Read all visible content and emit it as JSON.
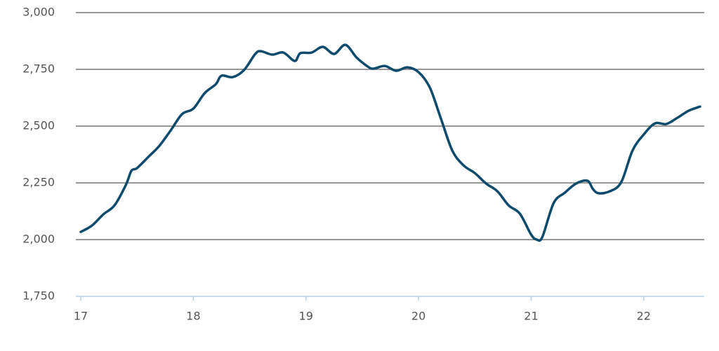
{
  "chart_data": {
    "type": "line",
    "x": [
      17.0,
      17.1,
      17.2,
      17.3,
      17.4,
      17.45,
      17.5,
      17.6,
      17.7,
      17.8,
      17.9,
      18.0,
      18.1,
      18.2,
      18.25,
      18.35,
      18.45,
      18.55,
      18.6,
      18.7,
      18.8,
      18.9,
      18.95,
      19.05,
      19.15,
      19.25,
      19.35,
      19.45,
      19.55,
      19.6,
      19.7,
      19.8,
      19.9,
      20.0,
      20.1,
      20.2,
      20.3,
      20.4,
      20.5,
      20.6,
      20.7,
      20.8,
      20.9,
      21.0,
      21.05,
      21.1,
      21.2,
      21.3,
      21.4,
      21.5,
      21.55,
      21.6,
      21.7,
      21.8,
      21.9,
      22.0,
      22.1,
      22.2,
      22.3,
      22.4,
      22.5
    ],
    "series": [
      {
        "color": "#0d4a6b",
        "values": [
          2034,
          2062,
          2111,
          2151,
          2240,
          2303,
          2315,
          2364,
          2414,
          2482,
          2553,
          2577,
          2645,
          2685,
          2722,
          2716,
          2747,
          2818,
          2830,
          2815,
          2824,
          2787,
          2821,
          2824,
          2849,
          2818,
          2858,
          2802,
          2762,
          2753,
          2765,
          2744,
          2759,
          2738,
          2670,
          2531,
          2392,
          2327,
          2293,
          2247,
          2213,
          2151,
          2114,
          2022,
          2000,
          2012,
          2161,
          2207,
          2247,
          2259,
          2222,
          2204,
          2213,
          2253,
          2392,
          2463,
          2512,
          2509,
          2537,
          2568,
          2586
        ]
      }
    ],
    "xlim": [
      17,
      22.5
    ],
    "xticks": [
      17,
      18,
      19,
      20,
      21,
      22
    ],
    "ylim": [
      1750,
      3000
    ],
    "yticks": [
      {
        "value": 1750,
        "label": "1,750"
      },
      {
        "value": 2000,
        "label": "2,000"
      },
      {
        "value": 2250,
        "label": "2,250"
      },
      {
        "value": 2500,
        "label": "2,500"
      },
      {
        "value": 2750,
        "label": "2,750"
      },
      {
        "value": 3000,
        "label": "3,000"
      }
    ],
    "grid": true
  }
}
